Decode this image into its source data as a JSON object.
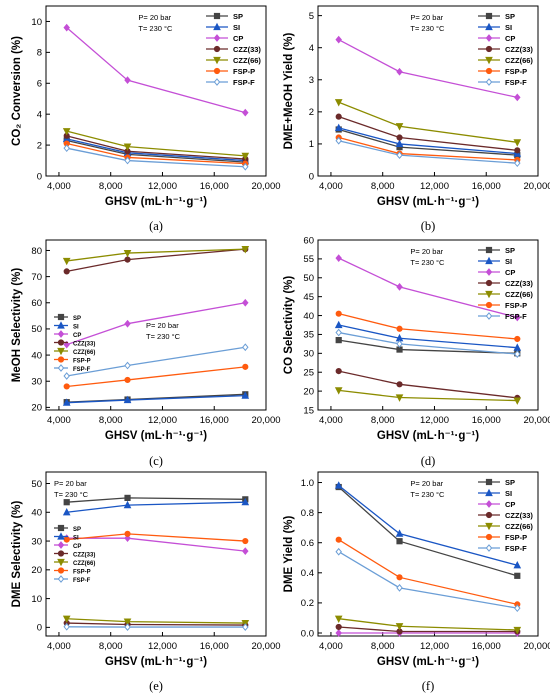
{
  "colors": {
    "SP": "#444444",
    "SI": "#1a56c4",
    "CP": "#c44fd6",
    "CZZ(33)": "#6b2a2a",
    "CZZ(66)": "#8c8c00",
    "FSP-P": "#ff5b0f",
    "FSP-F": "#6b9ed6",
    "CZZ(66)_f": "#8c8c00",
    "FSP-P_f": "#c7a000",
    "FSP-F_f": "#8a8ae6"
  },
  "chart_data": [
    {
      "id": "a",
      "type": "line",
      "panel_label": "(a)",
      "ylabel": "CO₂ Conversion (%)",
      "xlabel": "GHSV (mL·h⁻¹·g⁻¹)",
      "conditions": [
        "P= 20 bar",
        "T= 230 °C"
      ],
      "x": [
        4600,
        9300,
        18400
      ],
      "xlim": [
        3000,
        20000
      ],
      "xticks": [
        "4,000",
        "8,000",
        "12,000",
        "16,000",
        "20,000"
      ],
      "ylim": [
        0,
        11
      ],
      "yticks": [
        "0",
        "2",
        "4",
        "6",
        "8",
        "10"
      ],
      "legend": "top-right",
      "series": [
        {
          "name": "SP",
          "values": [
            2.3,
            1.4,
            0.9
          ]
        },
        {
          "name": "SI",
          "values": [
            2.4,
            1.5,
            1.0
          ]
        },
        {
          "name": "CP",
          "values": [
            9.6,
            6.2,
            4.1
          ]
        },
        {
          "name": "CZZ(33)",
          "values": [
            2.6,
            1.6,
            1.1
          ]
        },
        {
          "name": "CZZ(66)",
          "values": [
            2.9,
            1.9,
            1.3
          ]
        },
        {
          "name": "FSP-P",
          "values": [
            2.1,
            1.2,
            0.8
          ]
        },
        {
          "name": "FSP-F",
          "values": [
            1.8,
            1.0,
            0.6
          ]
        }
      ]
    },
    {
      "id": "b",
      "type": "line",
      "panel_label": "(b)",
      "ylabel": "DME+MeOH Yield (%)",
      "xlabel": "GHSV (mL·h⁻¹·g⁻¹)",
      "conditions": [
        "P= 20 bar",
        "T= 230 °C"
      ],
      "x": [
        4600,
        9300,
        18400
      ],
      "xlim": [
        3000,
        20000
      ],
      "xticks": [
        "4,000",
        "8,000",
        "12,000",
        "16,000",
        "20,000"
      ],
      "ylim": [
        0,
        5.3
      ],
      "yticks": [
        "0",
        "1",
        "2",
        "3",
        "4",
        "5"
      ],
      "legend": "top-right",
      "series": [
        {
          "name": "SP",
          "values": [
            1.45,
            0.9,
            0.65
          ]
        },
        {
          "name": "SI",
          "values": [
            1.5,
            1.0,
            0.7
          ]
        },
        {
          "name": "CP",
          "values": [
            4.25,
            3.25,
            2.45
          ]
        },
        {
          "name": "CZZ(33)",
          "values": [
            1.85,
            1.2,
            0.8
          ]
        },
        {
          "name": "CZZ(66)",
          "values": [
            2.3,
            1.55,
            1.05
          ]
        },
        {
          "name": "FSP-P",
          "values": [
            1.2,
            0.7,
            0.5
          ]
        },
        {
          "name": "FSP-F",
          "values": [
            1.1,
            0.65,
            0.4
          ]
        }
      ]
    },
    {
      "id": "c",
      "type": "line",
      "panel_label": "(c)",
      "ylabel": "MeOH Selectivity (%)",
      "xlabel": "GHSV (mL·h⁻¹·g⁻¹)",
      "conditions": [
        "P= 20 bar",
        "T= 230 °C"
      ],
      "x": [
        4600,
        9300,
        18400
      ],
      "xlim": [
        3000,
        20000
      ],
      "xticks": [
        "4,000",
        "8,000",
        "12,000",
        "16,000",
        "20,000"
      ],
      "ylim": [
        19,
        84
      ],
      "yticks": [
        "20",
        "30",
        "40",
        "50",
        "60",
        "70",
        "80"
      ],
      "legend": "middle-left",
      "series": [
        {
          "name": "SP",
          "values": [
            22,
            23,
            25
          ]
        },
        {
          "name": "SI",
          "values": [
            21.8,
            22.8,
            24.5
          ]
        },
        {
          "name": "CP",
          "values": [
            44,
            52,
            60
          ]
        },
        {
          "name": "CZZ(33)",
          "values": [
            72,
            76.5,
            80.5
          ]
        },
        {
          "name": "CZZ(66)",
          "values": [
            76,
            79,
            80.5
          ]
        },
        {
          "name": "FSP-P",
          "values": [
            28,
            30.5,
            35.5
          ]
        },
        {
          "name": "FSP-F",
          "values": [
            32,
            36,
            43
          ]
        }
      ]
    },
    {
      "id": "d",
      "type": "line",
      "panel_label": "(d)",
      "ylabel": "CO Selectivity (%)",
      "xlabel": "GHSV (mL·h⁻¹·g⁻¹)",
      "conditions": [
        "P= 20 bar",
        "T= 230 °C"
      ],
      "x": [
        4600,
        9300,
        18400
      ],
      "xlim": [
        3000,
        20000
      ],
      "xticks": [
        "4,000",
        "8,000",
        "12,000",
        "16,000",
        "20,000"
      ],
      "ylim": [
        15,
        60
      ],
      "yticks": [
        "15",
        "20",
        "25",
        "30",
        "35",
        "40",
        "45",
        "50",
        "55",
        "60"
      ],
      "legend": "top-right",
      "series": [
        {
          "name": "SP",
          "values": [
            33.5,
            31,
            30
          ]
        },
        {
          "name": "SI",
          "values": [
            37.5,
            34,
            31.5
          ]
        },
        {
          "name": "CP",
          "values": [
            55.2,
            47.6,
            39.5
          ]
        },
        {
          "name": "CZZ(33)",
          "values": [
            25.3,
            21.8,
            18.2
          ]
        },
        {
          "name": "CZZ(66)",
          "values": [
            20.2,
            18.3,
            17.5
          ]
        },
        {
          "name": "FSP-P",
          "values": [
            40.5,
            36.5,
            33.8
          ]
        },
        {
          "name": "FSP-F",
          "values": [
            35.5,
            32.5,
            29.8
          ]
        }
      ]
    },
    {
      "id": "e",
      "type": "line",
      "panel_label": "(e)",
      "ylabel": "DME Selectivity (%)",
      "xlabel": "GHSV (mL·h⁻¹·g⁻¹)",
      "conditions": [
        "P= 20 bar",
        "T= 230 °C"
      ],
      "x": [
        4600,
        9300,
        18400
      ],
      "xlim": [
        3000,
        20000
      ],
      "xticks": [
        "4,000",
        "8,000",
        "12,000",
        "16,000",
        "20,000"
      ],
      "ylim": [
        -3,
        54
      ],
      "yticks": [
        "0",
        "10",
        "20",
        "30",
        "40",
        "50"
      ],
      "legend": "middle-left",
      "series": [
        {
          "name": "SP",
          "values": [
            43.5,
            45,
            44.5
          ]
        },
        {
          "name": "SI",
          "values": [
            40,
            42.5,
            43.5
          ]
        },
        {
          "name": "CP",
          "values": [
            31,
            31,
            26.5
          ]
        },
        {
          "name": "CZZ(33)",
          "values": [
            1.5,
            1.0,
            0.8
          ]
        },
        {
          "name": "CZZ(66)",
          "values": [
            3.0,
            2.0,
            1.5
          ]
        },
        {
          "name": "FSP-P",
          "values": [
            30.5,
            32.5,
            30
          ]
        },
        {
          "name": "FSP-F",
          "values": [
            0.2,
            0.1,
            0.1
          ]
        }
      ]
    },
    {
      "id": "f",
      "type": "line",
      "panel_label": "(f)",
      "ylabel": "DME Yield (%)",
      "xlabel": "GHSV (mL·h⁻¹·g⁻¹)",
      "conditions": [
        "P= 20 bar",
        "T= 230 °C"
      ],
      "x": [
        4600,
        9300,
        18400
      ],
      "xlim": [
        3000,
        20000
      ],
      "xticks": [
        "4,000",
        "8,000",
        "12,000",
        "16,000",
        "20,000"
      ],
      "ylim": [
        -0.02,
        1.07
      ],
      "yticks": [
        "0.0",
        "0.2",
        "0.4",
        "0.6",
        "0.8",
        "1.0"
      ],
      "legend": "top-right",
      "series": [
        {
          "name": "SP",
          "values": [
            0.97,
            0.61,
            0.38
          ]
        },
        {
          "name": "SI",
          "values": [
            0.98,
            0.66,
            0.45
          ]
        },
        {
          "name": "CP",
          "values": [
            0.0,
            0.0,
            0.0
          ]
        },
        {
          "name": "CZZ(33)",
          "values": [
            0.04,
            0.01,
            0.01
          ]
        },
        {
          "name": "CZZ(66)",
          "values": [
            0.095,
            0.045,
            0.02
          ]
        },
        {
          "name": "FSP-P",
          "values": [
            0.62,
            0.37,
            0.19
          ]
        },
        {
          "name": "FSP-F",
          "values": [
            0.54,
            0.3,
            0.165
          ]
        }
      ]
    }
  ]
}
